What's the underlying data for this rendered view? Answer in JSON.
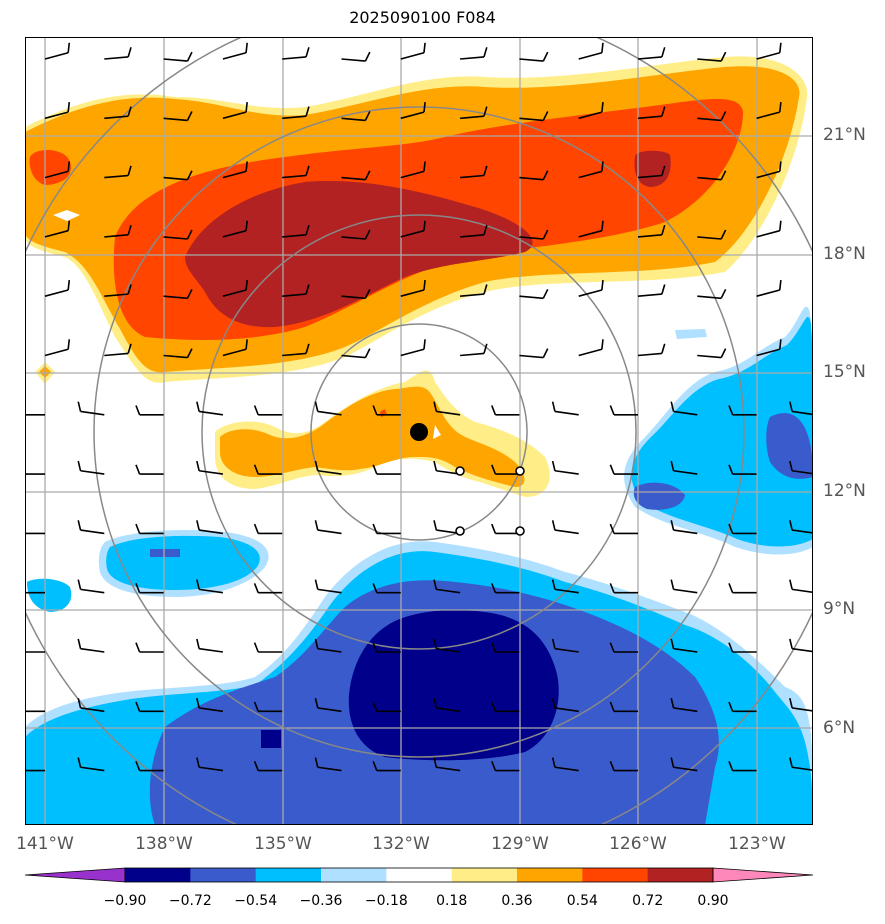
{
  "title": "2025090100 F084",
  "lat_labels": [
    "21°N",
    "18°N",
    "15°N",
    "12°N",
    "9°N",
    "6°N"
  ],
  "lon_labels": [
    "141°W",
    "138°W",
    "135°W",
    "132°W",
    "129°W",
    "126°W",
    "123°W"
  ],
  "colorbar": {
    "ticks": [
      "−0.90",
      "−0.72",
      "−0.54",
      "−0.36",
      "−0.18",
      "0.18",
      "0.36",
      "0.54",
      "0.72",
      "0.90"
    ],
    "colors": [
      "#9932CC",
      "#00008B",
      "#3A5BCB",
      "#00BFFF",
      "#B0E0FF",
      "#FFFFFF",
      "#FFEE88",
      "#FFA500",
      "#FF4500",
      "#B22222",
      "#FF88BB"
    ]
  },
  "storm_center": {
    "lat": 13.5,
    "lon": -131.7
  },
  "track_points": [
    {
      "lat": 12.5,
      "lon": -130.5
    },
    {
      "lat": 12.5,
      "lon": -129.0
    },
    {
      "lat": 11.0,
      "lon": -130.5
    },
    {
      "lat": 11.0,
      "lon": -129.0
    }
  ],
  "range_rings_count": 4
}
